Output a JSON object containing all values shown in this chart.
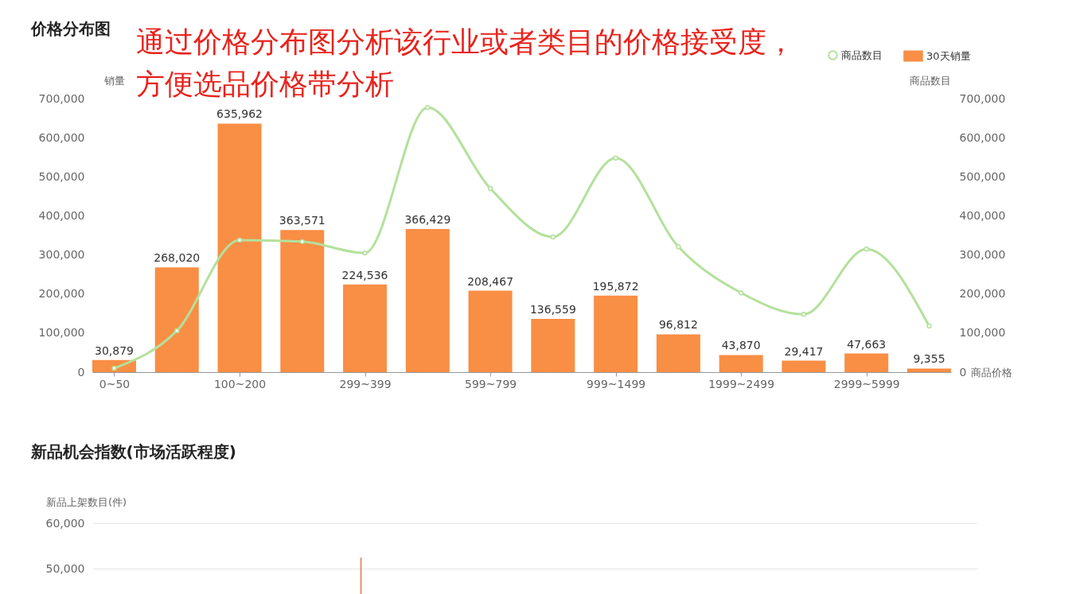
{
  "chart_data": [
    {
      "type": "bar",
      "title": "价格分布图",
      "annotations": [
        "通过价格分布图分析该行业或者类目的价格接受度，",
        "方便选品价格带分析"
      ],
      "xlabel": "商品价格",
      "ylabel": "销量",
      "y2label": "商品数目",
      "categories": [
        "0~50",
        null,
        "100~200",
        null,
        "299~399",
        null,
        "599~799",
        null,
        "999~1499",
        null,
        "1999~2499",
        null,
        "2999~5999",
        null
      ],
      "series": [
        {
          "name": "商品数目",
          "type": "line",
          "axis": "y2",
          "color": "#b3e19c",
          "values": [
            10000,
            106000,
            338000,
            334000,
            305000,
            677000,
            470000,
            346000,
            548000,
            321000,
            203000,
            148000,
            315000,
            118000
          ]
        },
        {
          "name": "30天销量",
          "type": "bar",
          "color": "#f98e45",
          "values": [
            30879,
            268020,
            635962,
            363571,
            224536,
            366429,
            208467,
            136559,
            195872,
            96812,
            43870,
            29417,
            47663,
            9355
          ],
          "value_labels": [
            "30,879",
            "268,020",
            "635,962",
            "363,571",
            "224,536",
            "366,429",
            "208,467",
            "136,559",
            "195,872",
            "96,812",
            "43,870",
            "29,417",
            "47,663",
            "9,355"
          ]
        }
      ],
      "ylim": [
        0,
        700000
      ],
      "yticks": [
        0,
        {
          "value": 100000,
          "label": "100,000"
        },
        {
          "value": 200000,
          "label": "200,000"
        },
        {
          "value": 300000,
          "label": "300,000"
        },
        {
          "value": 400000,
          "label": "400,000"
        },
        {
          "value": 500000,
          "label": "500,000"
        },
        {
          "value": 600000,
          "label": "600,000"
        },
        {
          "value": 700000,
          "label": "700,000"
        }
      ],
      "y2lim": [
        0,
        700000
      ],
      "y2ticks": [
        0,
        {
          "value": 100000,
          "label": "100,000"
        },
        {
          "value": 200000,
          "label": "200,000"
        },
        {
          "value": 300000,
          "label": "300,000"
        },
        {
          "value": 400000,
          "label": "400,000"
        },
        {
          "value": 500000,
          "label": "500,000"
        },
        {
          "value": 600000,
          "label": "600,000"
        },
        {
          "value": 700000,
          "label": "700,000"
        }
      ],
      "legend": "top right",
      "marker": "circle",
      "line_style": "solid"
    },
    {
      "type": "bar",
      "title": "新品机会指数(市场活跃程度)",
      "ylabel": "新品上架数目(件)",
      "categories": [
        null,
        null,
        null,
        null,
        null,
        null,
        null,
        null,
        null,
        null,
        null,
        null,
        null,
        null,
        null,
        null,
        null,
        null,
        null,
        null,
        null,
        null,
        null,
        null,
        null,
        null,
        null,
        null
      ],
      "values": [
        null,
        null,
        null,
        null,
        null,
        null,
        null,
        null,
        52400,
        null,
        null,
        null,
        null,
        null,
        null,
        null,
        null,
        null,
        null,
        null,
        null,
        null,
        null,
        null,
        null,
        null,
        null,
        null
      ],
      "color": "#eb8f6a",
      "ylim": [
        43000,
        60000
      ],
      "yticks": [
        {
          "value": 50000,
          "label": "50,000"
        },
        {
          "value": 60000,
          "label": "60,000"
        }
      ],
      "grid": "y",
      "tick_labels": "y"
    }
  ]
}
